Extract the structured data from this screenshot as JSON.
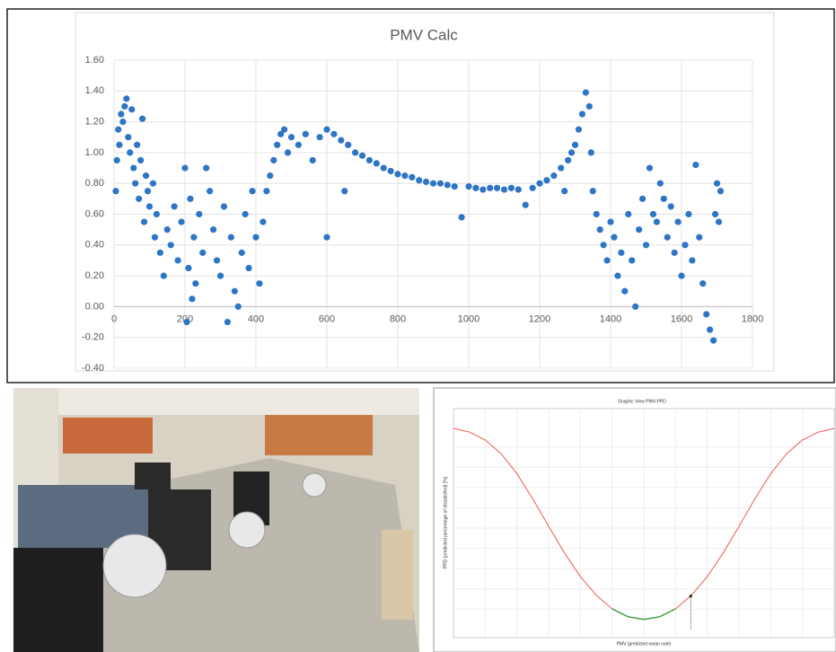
{
  "chart_data": [
    {
      "type": "scatter",
      "title": "PMV Calc",
      "color": "#2e75c6",
      "grid": true,
      "xlim": [
        0,
        1800
      ],
      "xticks": [
        0,
        200,
        400,
        600,
        800,
        1000,
        1200,
        1400,
        1600,
        1800
      ],
      "ylim": [
        -0.4,
        1.6
      ],
      "yticks": [
        {
          "value": -0.4,
          "label": "-0.40"
        },
        {
          "value": -0.2,
          "label": "-0.20"
        },
        {
          "value": 0,
          "label": "0.00"
        },
        {
          "value": 0.2,
          "label": "0.20"
        },
        {
          "value": 0.4,
          "label": "0.40"
        },
        {
          "value": 0.6,
          "label": "0.60"
        },
        {
          "value": 0.8,
          "label": "0.80"
        },
        {
          "value": 1,
          "label": "1.00"
        },
        {
          "value": 1.2,
          "label": "1.20"
        },
        {
          "value": 1.4,
          "label": "1.40"
        },
        {
          "value": 1.6,
          "label": "1.60"
        }
      ],
      "x": [
        5,
        8,
        12,
        15,
        20,
        25,
        30,
        35,
        40,
        45,
        50,
        55,
        60,
        65,
        70,
        75,
        80,
        85,
        90,
        95,
        100,
        110,
        115,
        120,
        130,
        140,
        150,
        160,
        170,
        180,
        190,
        200,
        205,
        210,
        215,
        220,
        225,
        230,
        240,
        250,
        260,
        270,
        280,
        290,
        300,
        310,
        320,
        330,
        340,
        350,
        360,
        370,
        380,
        390,
        400,
        410,
        420,
        430,
        440,
        450,
        460,
        470,
        480,
        490,
        500,
        520,
        540,
        560,
        580,
        600,
        600,
        620,
        640,
        650,
        660,
        680,
        700,
        720,
        740,
        760,
        780,
        800,
        820,
        840,
        860,
        880,
        900,
        920,
        940,
        960,
        980,
        1000,
        1020,
        1040,
        1060,
        1080,
        1100,
        1120,
        1140,
        1160,
        1180,
        1200,
        1220,
        1240,
        1260,
        1270,
        1280,
        1290,
        1300,
        1310,
        1320,
        1330,
        1340,
        1345,
        1350,
        1360,
        1370,
        1380,
        1390,
        1400,
        1410,
        1420,
        1430,
        1440,
        1450,
        1460,
        1470,
        1480,
        1490,
        1500,
        1510,
        1520,
        1530,
        1540,
        1550,
        1560,
        1570,
        1580,
        1590,
        1600,
        1610,
        1620,
        1630,
        1640,
        1650,
        1660,
        1670,
        1680,
        1690,
        1695,
        1700,
        1705,
        1710
      ],
      "values": [
        0.75,
        0.95,
        1.15,
        1.05,
        1.25,
        1.2,
        1.3,
        1.35,
        1.1,
        1.0,
        1.28,
        0.9,
        0.8,
        1.05,
        0.7,
        0.95,
        1.22,
        0.55,
        0.85,
        0.75,
        0.65,
        0.8,
        0.45,
        0.6,
        0.35,
        0.2,
        0.5,
        0.4,
        0.65,
        0.3,
        0.55,
        0.9,
        -0.1,
        0.25,
        0.7,
        0.05,
        0.45,
        0.15,
        0.6,
        0.35,
        0.9,
        0.75,
        0.5,
        0.3,
        0.2,
        0.65,
        -0.1,
        0.45,
        0.1,
        0.0,
        0.35,
        0.6,
        0.25,
        0.75,
        0.45,
        0.15,
        0.55,
        0.75,
        0.85,
        0.95,
        1.05,
        1.12,
        1.15,
        1.0,
        1.1,
        1.05,
        1.12,
        0.95,
        1.1,
        0.45,
        1.15,
        1.12,
        1.08,
        0.75,
        1.05,
        1.0,
        0.98,
        0.95,
        0.93,
        0.9,
        0.88,
        0.86,
        0.85,
        0.84,
        0.82,
        0.81,
        0.8,
        0.8,
        0.79,
        0.78,
        0.58,
        0.78,
        0.77,
        0.76,
        0.77,
        0.77,
        0.76,
        0.77,
        0.76,
        0.66,
        0.77,
        0.8,
        0.82,
        0.85,
        0.9,
        0.75,
        0.95,
        1.0,
        1.05,
        1.15,
        1.25,
        1.39,
        1.3,
        1.0,
        0.75,
        0.6,
        0.5,
        0.4,
        0.3,
        0.55,
        0.45,
        0.2,
        0.35,
        0.1,
        0.6,
        0.3,
        0.0,
        0.5,
        0.7,
        0.4,
        0.9,
        0.6,
        0.55,
        0.8,
        0.7,
        0.45,
        0.65,
        0.35,
        0.55,
        0.2,
        0.4,
        0.6,
        0.3,
        0.92,
        0.45,
        0.15,
        -0.05,
        -0.15,
        -0.22,
        0.6,
        0.8,
        0.55,
        0.75
      ]
    },
    {
      "type": "line",
      "title": "Graphic View PMV-PPD",
      "color": "#f05a50",
      "y_label": "PPD (predicted percentage of dissatisfied) [%]",
      "x_label": "PMV (predicted mean vote)",
      "xlim": [
        -3,
        3
      ],
      "ylim": [
        0,
        100
      ],
      "x": [
        -3,
        -2.75,
        -2.5,
        -2.25,
        -2,
        -1.75,
        -1.5,
        -1.25,
        -1,
        -0.75,
        -0.5,
        -0.25,
        0,
        0.25,
        0.5,
        0.75,
        1,
        1.25,
        1.5,
        1.75,
        2,
        2.25,
        2.5,
        2.75,
        3
      ],
      "values": [
        99.1,
        97.3,
        93.4,
        86.7,
        76.8,
        64.4,
        50.9,
        37.7,
        26.1,
        16.9,
        10.2,
        6.3,
        5,
        6.3,
        10.2,
        16.9,
        26.1,
        37.7,
        50.9,
        64.4,
        76.8,
        86.7,
        93.4,
        97.3,
        99.1
      ],
      "highlight_xlim": [
        -0.5,
        0.5
      ],
      "highlight_color": "#2e9a3a",
      "marker_x": 0.74,
      "marker_value": 16.5
    }
  ]
}
